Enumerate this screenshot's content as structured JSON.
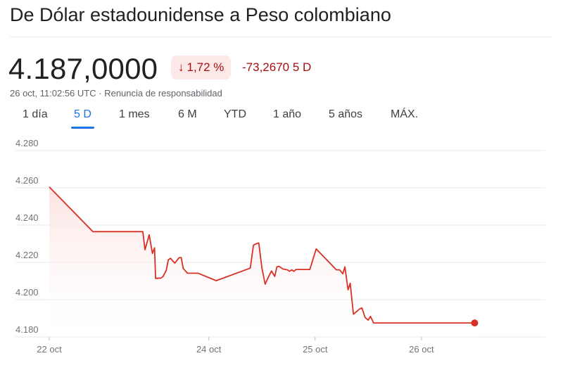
{
  "header": {
    "title": "De Dólar estadounidense a Peso colombiano"
  },
  "quote": {
    "price": "4.187,0000",
    "change_percent": "1,72 %",
    "change_arrow": "↓",
    "change_absolute": "-73,2670 5 D",
    "timestamp": "26 oct, 11:02:56 UTC",
    "separator": "·",
    "disclaimer": "Renuncia de responsabilidad"
  },
  "tabs": [
    {
      "label": "1 día",
      "active": false
    },
    {
      "label": "5 D",
      "active": true
    },
    {
      "label": "1 mes",
      "active": false
    },
    {
      "label": "6 M",
      "active": false
    },
    {
      "label": "YTD",
      "active": false
    },
    {
      "label": "1 año",
      "active": false
    },
    {
      "label": "5 años",
      "active": false
    },
    {
      "label": "MÁX.",
      "active": false
    }
  ],
  "colors": {
    "line": "#d93025",
    "fill": "#fbe3e1",
    "grid": "#e8eaed",
    "negative_text": "#a50e0e",
    "badge_bg": "#fce8e6",
    "active_tab": "#1a73e8"
  },
  "chart_data": {
    "type": "area",
    "ylim": [
      4180,
      4280
    ],
    "yticks": [
      4280,
      4260,
      4240,
      4220,
      4200,
      4180
    ],
    "ytick_labels": [
      "4.280",
      "4.260",
      "4.240",
      "4.220",
      "4.200",
      "4.180"
    ],
    "xlim": [
      0,
      4.5
    ],
    "xticks": [
      0,
      1.5,
      2.5,
      3.5
    ],
    "xtick_labels": [
      "22 oct",
      "24 oct",
      "25 oct",
      "26 oct"
    ],
    "grid": "horizontal",
    "series": [
      {
        "points": [
          [
            0,
            4260.5
          ],
          [
            0.41,
            4236.5
          ],
          [
            0.88,
            4236.5
          ],
          [
            0.9,
            4226.8
          ],
          [
            0.94,
            4234.8
          ],
          [
            0.97,
            4224.8
          ],
          [
            0.99,
            4227.8
          ],
          [
            1.0,
            4211.4
          ],
          [
            1.05,
            4211.6
          ],
          [
            1.07,
            4212.5
          ],
          [
            1.1,
            4215.7
          ],
          [
            1.12,
            4221.4
          ],
          [
            1.14,
            4222.2
          ],
          [
            1.18,
            4219.6
          ],
          [
            1.22,
            4222.5
          ],
          [
            1.24,
            4222.6
          ],
          [
            1.26,
            4216.7
          ],
          [
            1.3,
            4214.2
          ],
          [
            1.4,
            4214.2
          ],
          [
            1.57,
            4210.2
          ],
          [
            1.89,
            4216.9
          ],
          [
            1.92,
            4229.2
          ],
          [
            1.95,
            4230.1
          ],
          [
            1.97,
            4230.4
          ],
          [
            2.0,
            4216.9
          ],
          [
            2.03,
            4208.3
          ],
          [
            2.06,
            4212.1
          ],
          [
            2.09,
            4215.4
          ],
          [
            2.12,
            4212.5
          ],
          [
            2.14,
            4217.6
          ],
          [
            2.16,
            4217.9
          ],
          [
            2.2,
            4216.4
          ],
          [
            2.24,
            4216.0
          ],
          [
            2.26,
            4215.2
          ],
          [
            2.28,
            4216.0
          ],
          [
            2.3,
            4215.2
          ],
          [
            2.32,
            4216.2
          ],
          [
            2.45,
            4216.2
          ],
          [
            2.51,
            4227.2
          ],
          [
            2.7,
            4216.0
          ],
          [
            2.73,
            4216.0
          ],
          [
            2.76,
            4213.9
          ],
          [
            2.78,
            4217.6
          ],
          [
            2.81,
            4205.3
          ],
          [
            2.83,
            4208.8
          ],
          [
            2.86,
            4192.2
          ],
          [
            2.92,
            4195.1
          ],
          [
            2.94,
            4195.5
          ],
          [
            2.97,
            4190.4
          ],
          [
            3.0,
            4189.0
          ],
          [
            3.02,
            4191.0
          ],
          [
            3.05,
            4187.5
          ],
          [
            4.0,
            4187.5
          ]
        ]
      }
    ]
  }
}
